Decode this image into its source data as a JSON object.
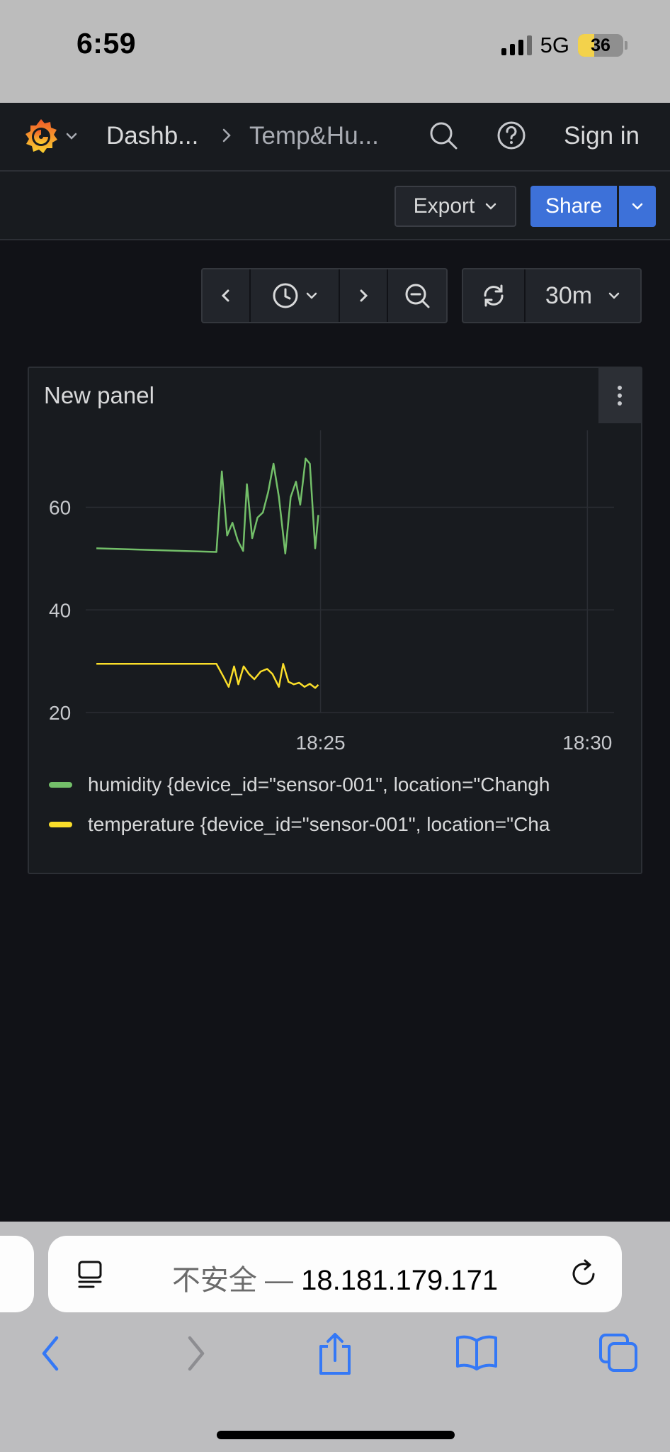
{
  "status_bar": {
    "time": "6:59",
    "network": "5G",
    "battery_percent": "36",
    "battery_level": 0.36
  },
  "topnav": {
    "breadcrumb_home": "Dashb...",
    "breadcrumb_current": "Temp&Hu...",
    "sign_in": "Sign in"
  },
  "toolbar": {
    "export_label": "Export",
    "share_label": "Share"
  },
  "time_controls": {
    "refresh_interval": "30m"
  },
  "panel": {
    "title": "New panel",
    "legend": [
      {
        "label": "humidity {device_id=\"sensor-001\", location=\"Changh",
        "color": "#73bf69"
      },
      {
        "label": "temperature {device_id=\"sensor-001\", location=\"Cha",
        "color": "#fade2a"
      }
    ]
  },
  "chart_data": {
    "type": "line",
    "xlabel": "",
    "ylabel": "",
    "x_tick_labels": [
      "18:25",
      "18:30"
    ],
    "y_ticks": [
      20,
      40,
      60
    ],
    "ylim": [
      20,
      75
    ],
    "x_unit": "minutes",
    "xlim": [
      -4.4,
      5.5
    ],
    "x_tick_values": [
      0,
      5
    ],
    "series": [
      {
        "name": "humidity {device_id=\"sensor-001\", location=\"Changh",
        "color": "#73bf69",
        "points": [
          [
            -4.2,
            52.0
          ],
          [
            -1.95,
            51.3
          ],
          [
            -1.85,
            67.0
          ],
          [
            -1.75,
            54.5
          ],
          [
            -1.65,
            57.0
          ],
          [
            -1.55,
            53.5
          ],
          [
            -1.45,
            51.5
          ],
          [
            -1.38,
            64.5
          ],
          [
            -1.28,
            54.0
          ],
          [
            -1.18,
            58.0
          ],
          [
            -1.08,
            59.0
          ],
          [
            -0.98,
            63.0
          ],
          [
            -0.88,
            68.5
          ],
          [
            -0.78,
            62.0
          ],
          [
            -0.66,
            51.0
          ],
          [
            -0.56,
            62.0
          ],
          [
            -0.46,
            65.0
          ],
          [
            -0.38,
            60.5
          ],
          [
            -0.28,
            69.5
          ],
          [
            -0.2,
            68.5
          ],
          [
            -0.1,
            52.0
          ],
          [
            -0.04,
            58.5
          ]
        ]
      },
      {
        "name": "temperature {device_id=\"sensor-001\", location=\"Cha",
        "color": "#fade2a",
        "points": [
          [
            -4.2,
            29.5
          ],
          [
            -1.95,
            29.5
          ],
          [
            -1.82,
            27.0
          ],
          [
            -1.72,
            25.0
          ],
          [
            -1.62,
            29.0
          ],
          [
            -1.54,
            25.5
          ],
          [
            -1.44,
            29.0
          ],
          [
            -1.34,
            27.5
          ],
          [
            -1.24,
            26.5
          ],
          [
            -1.12,
            28.0
          ],
          [
            -1.0,
            28.5
          ],
          [
            -0.9,
            27.5
          ],
          [
            -0.78,
            25.0
          ],
          [
            -0.7,
            29.5
          ],
          [
            -0.6,
            26.0
          ],
          [
            -0.5,
            25.5
          ],
          [
            -0.4,
            25.8
          ],
          [
            -0.3,
            25.0
          ],
          [
            -0.2,
            25.6
          ],
          [
            -0.1,
            24.8
          ],
          [
            -0.04,
            25.4
          ]
        ]
      }
    ],
    "grid": true,
    "legend_position": "bottom"
  },
  "safari": {
    "url_insecure_label": "不安全 —",
    "url_host": "18.181.179.171"
  }
}
